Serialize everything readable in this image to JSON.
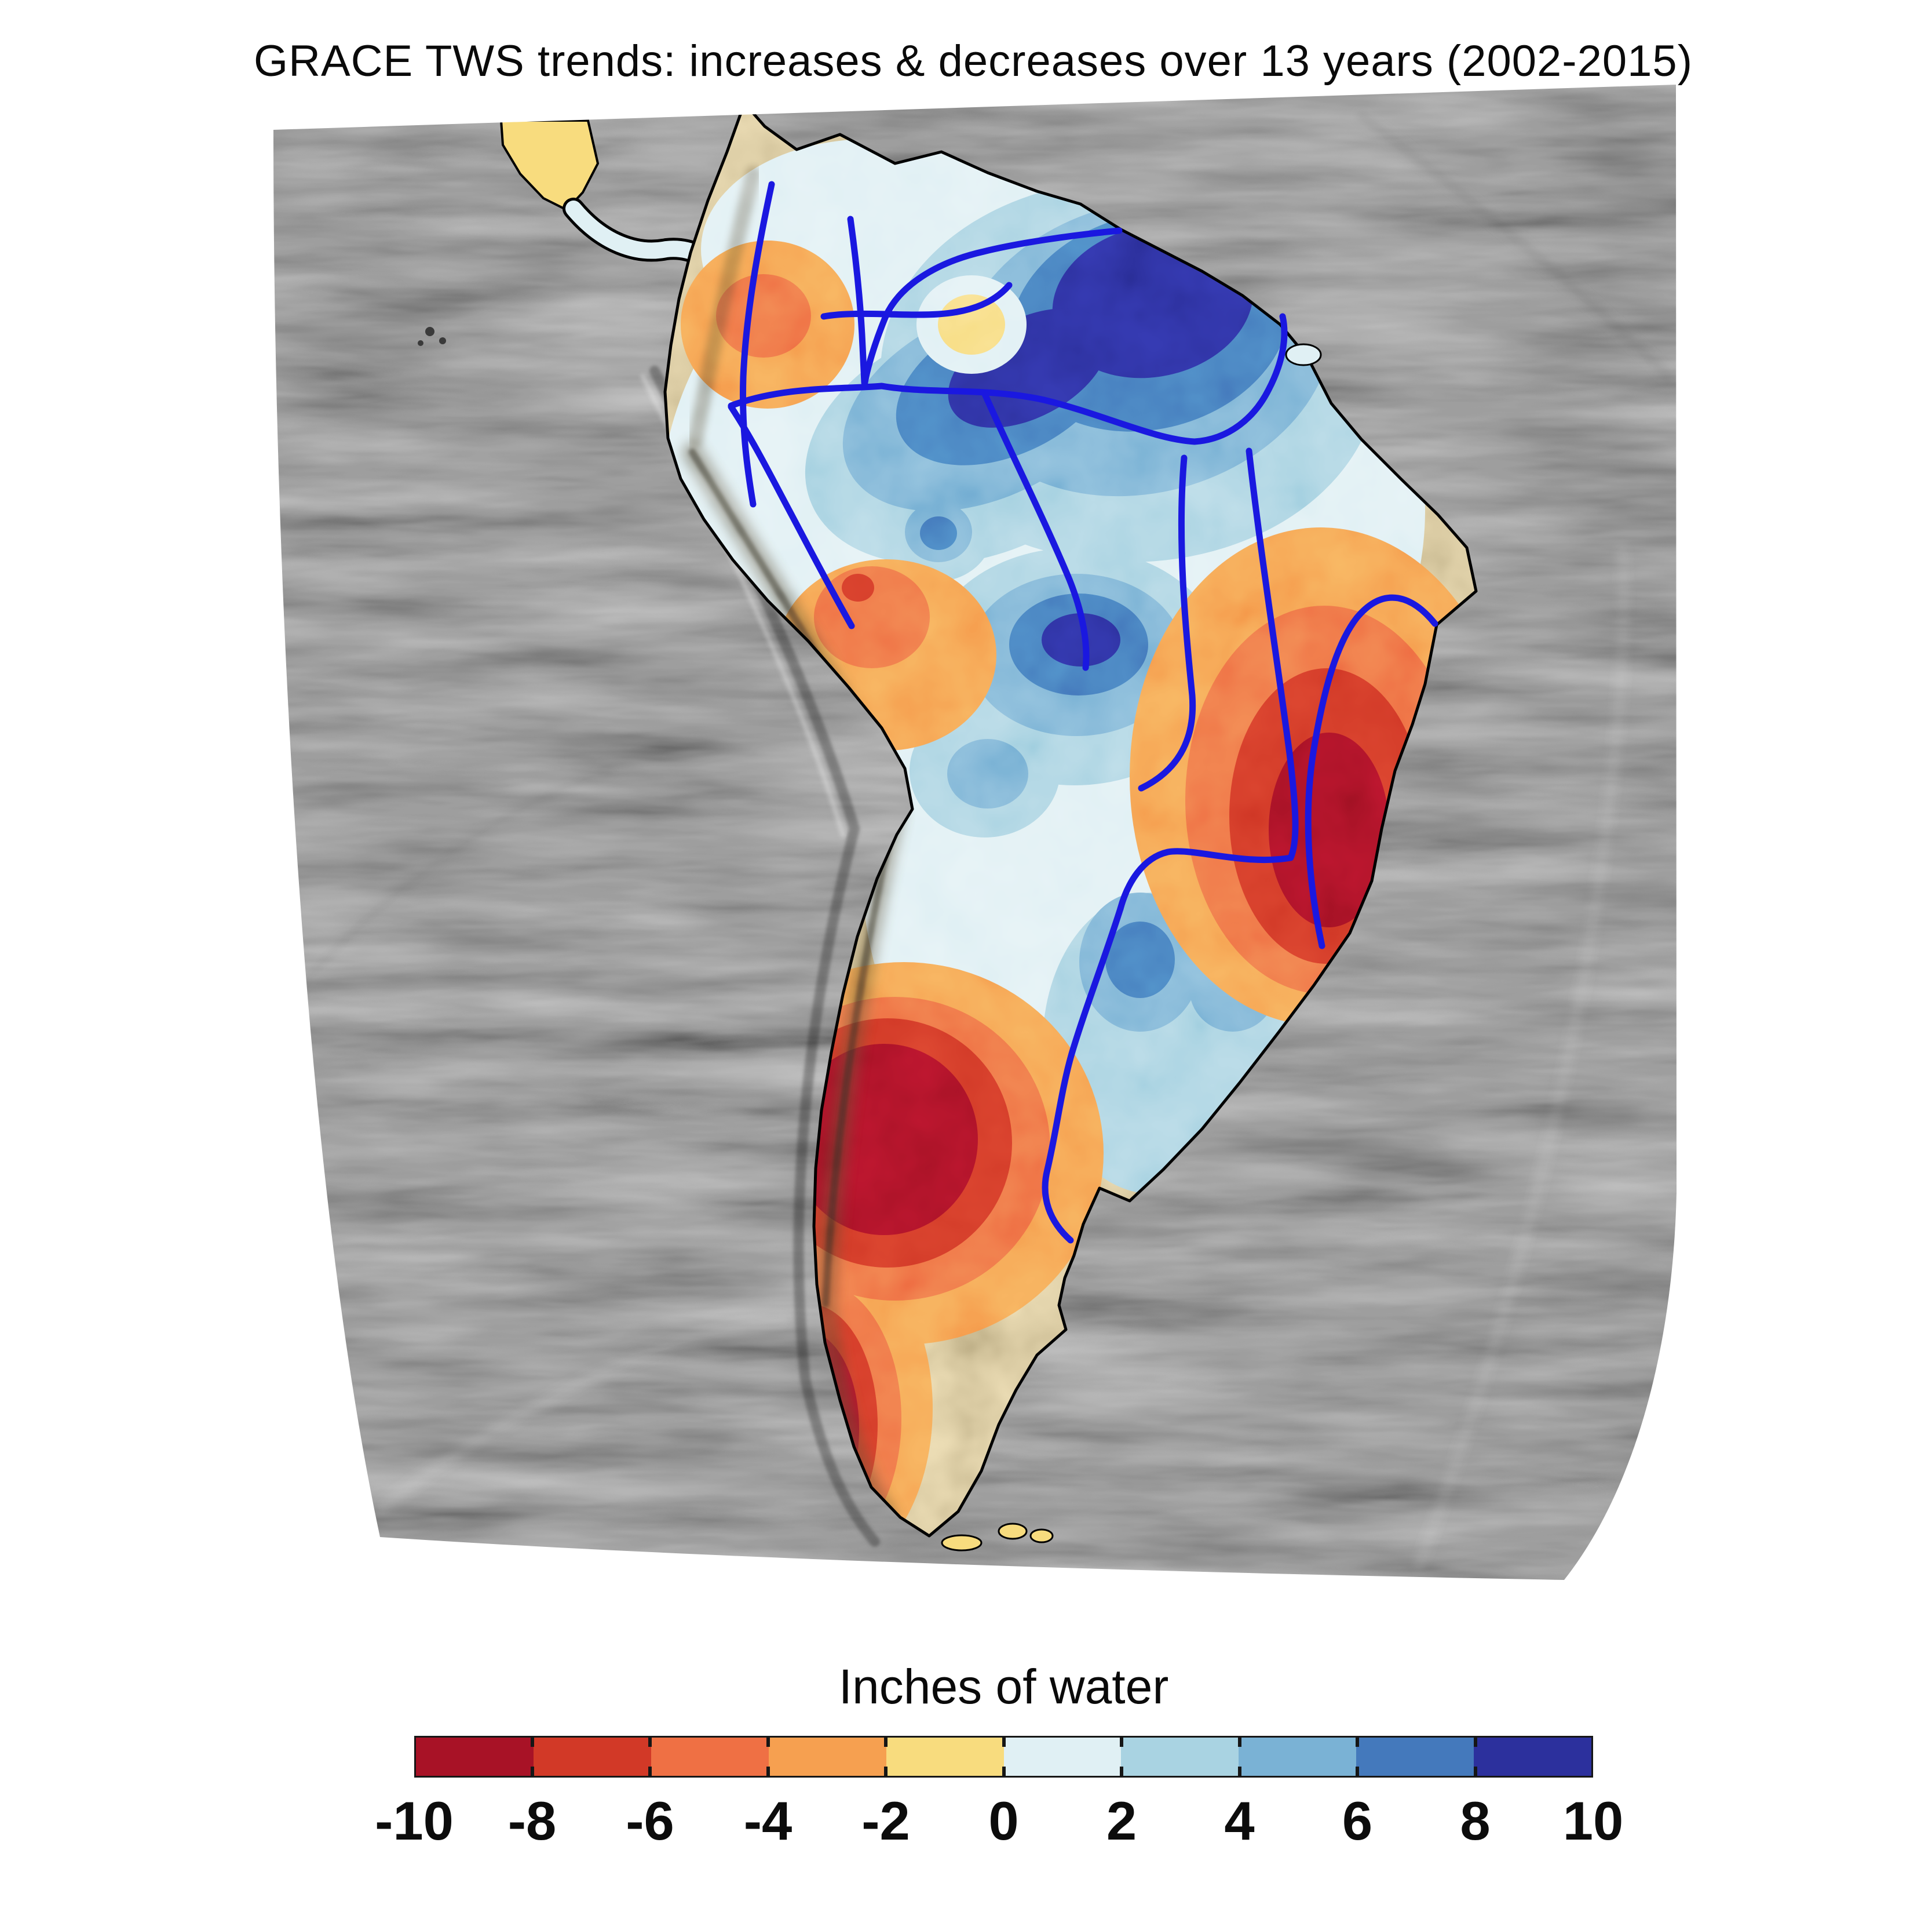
{
  "title": "GRACE TWS trends: increases & decreases over 13 years (2002-2015)",
  "map": {
    "description": "Grey shaded-relief map of South America overlaid with contoured GRACE terrestrial water storage (TWS) trends; major rivers drawn in blue; coastline in black; ocean is unshaded grey hillshade.",
    "colors": {
      "ocean": "#7e7e7e",
      "land": "#eed9a0",
      "river": "#1a18e0",
      "coast": "#000000"
    }
  },
  "colorbar": {
    "label": "Inches of water",
    "ticks": [
      "-10",
      "-8",
      "-6",
      "-4",
      "-2",
      "0",
      "2",
      "4",
      "6",
      "8",
      "10"
    ],
    "segment_colors": [
      "#a81226",
      "#d23927",
      "#ef7044",
      "#f6a050",
      "#f8dc7e",
      "#e0f0f4",
      "#a9d3e2",
      "#7ab2d5",
      "#4479bc",
      "#2c309d"
    ]
  },
  "chart_data": {
    "type": "heatmap",
    "subtype": "filled-contour-geographic-map",
    "title": "GRACE TWS trends: increases & decreases over 13 years (2002-2015)",
    "region_shown": "South America and surrounding ocean",
    "colorbar_label": "Inches of water",
    "units": "inches of water equivalent trend over 2002-2015",
    "value_range": [
      -10,
      10
    ],
    "tick_values": [
      -10,
      -8,
      -6,
      -4,
      -2,
      0,
      2,
      4,
      6,
      8,
      10
    ],
    "palette": [
      "#a81226",
      "#d23927",
      "#ef7044",
      "#f6a050",
      "#f8dc7e",
      "#e0f0f4",
      "#a9d3e2",
      "#7ab2d5",
      "#4479bc",
      "#2c309d"
    ],
    "palette_meaning": "dark red = -10 to -8 in (strong decrease) ... dark blue = +8 to +10 in (strong increase)",
    "features": [
      {
        "region": "Central Amazon basin (Rio Negro / Solimoes confluence)",
        "trend_inches": "+8 to +10"
      },
      {
        "region": "Guyanas / upper Amazon surroundings",
        "trend_inches": "+2 to +8"
      },
      {
        "region": "Secondary wet core south of Amazon main stem",
        "trend_inches": "+6 to +10"
      },
      {
        "region": "Parana / Paraguay lowlands spot",
        "trend_inches": "+4 to +8"
      },
      {
        "region": "Uruguay / southern Brazil coast",
        "trend_inches": "0 to +4"
      },
      {
        "region": "Eastern Brazil (Sao Francisco basin)",
        "trend_inches": "-10 to -8 core, -6 to -2 surrounding"
      },
      {
        "region": "NW South America (Colombia / Venezuela llanos)",
        "trend_inches": "-6 to -2"
      },
      {
        "region": "Coastal Peru / Altiplano spot",
        "trend_inches": "-8 to -2"
      },
      {
        "region": "Central Argentina (Pampas / northern Patagonia)",
        "trend_inches": "-10 to -8 core"
      },
      {
        "region": "Southern Patagonia (glacier fields)",
        "trend_inches": "-10 to -8 core"
      },
      {
        "region": "Remaining land background",
        "trend_inches": "-2 to 0"
      }
    ],
    "overlays": [
      "major rivers in bright blue (Amazon, Negro, Orinoco, Magdalena, Ucayali, Madeira, Tocantins, Xingu-Araguaia, Sao Francisco, Parana)",
      "black coastline outline",
      "grey shaded-relief ocean floor and terrain texture"
    ],
    "legend_position": "horizontal colorbar bottom center",
    "grid": false
  }
}
